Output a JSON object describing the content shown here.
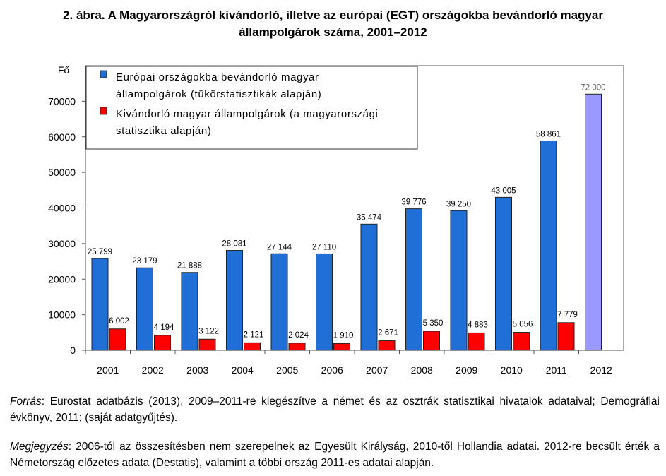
{
  "figure": {
    "title_line1": "2. ábra. A Magyarországról kivándorló, illetve az európai (EGT) országokba bevándorló magyar",
    "title_line2": "állampolgárok száma, 2001–2012"
  },
  "chart_data": {
    "type": "bar",
    "ylabel": "Fő",
    "ylim": [
      0,
      80000
    ],
    "yticks": [
      0,
      10000,
      20000,
      30000,
      40000,
      50000,
      60000,
      70000
    ],
    "categories": [
      "2001",
      "2002",
      "2003",
      "2004",
      "2005",
      "2006",
      "2007",
      "2008",
      "2009",
      "2010",
      "2011",
      "2012"
    ],
    "grid": false,
    "legend_position": "top-left",
    "series": [
      {
        "name": "Európai országokba bevándorló magyar állampolgárok (tükörstatisztikák alapján)",
        "legend_lines": [
          "Európai országokba bevándorló magyar",
          "állampolgárok (tükörstatisztikák alapján)"
        ],
        "color": "#1F6FD6",
        "highlight_color": "#9999FF",
        "values": [
          25799,
          23179,
          21888,
          28081,
          27144,
          27110,
          35474,
          39776,
          39250,
          43005,
          58861,
          72000
        ],
        "labels": [
          "25 799",
          "23 179",
          "21 888",
          "28 081",
          "27 144",
          "27 110",
          "35 474",
          "39 776",
          "39 250",
          "43 005",
          "58 861",
          "72 000"
        ]
      },
      {
        "name": "Kivándorló magyar állampolgárok (a magyarországi statisztika alapján)",
        "legend_lines": [
          "Kivándorló magyar állampolgárok (a magyarországi",
          "statisztika alapján)"
        ],
        "color": "#FF0000",
        "values": [
          6002,
          4194,
          3122,
          2121,
          2024,
          1910,
          2671,
          5350,
          4883,
          5056,
          7779,
          null
        ],
        "labels": [
          "6 002",
          "4 194",
          "3 122",
          "2 121",
          "2 024",
          "1 910",
          "2 671",
          "5 350",
          "4 883",
          "5 056",
          "7 779",
          ""
        ]
      }
    ]
  },
  "notes": {
    "source_lead": "Forrás",
    "source_text": ": Eurostat adatbázis (2013), 2009–2011-re kiegészítve a német és az osztrák statisztikai hivatalok adataival; Demográfiai évkönyv, 2011; (saját adatgyűjtés).",
    "remark_lead": "Megjegyzés",
    "remark_text": ": 2006-tól az összesítésben nem szerepelnek az Egyesült Királyság, 2010-től Hollandia adatai. 2012-re becsült érték a Németország előzetes adata (Destatis), valamint a többi ország 2011-es adatai alapján."
  }
}
